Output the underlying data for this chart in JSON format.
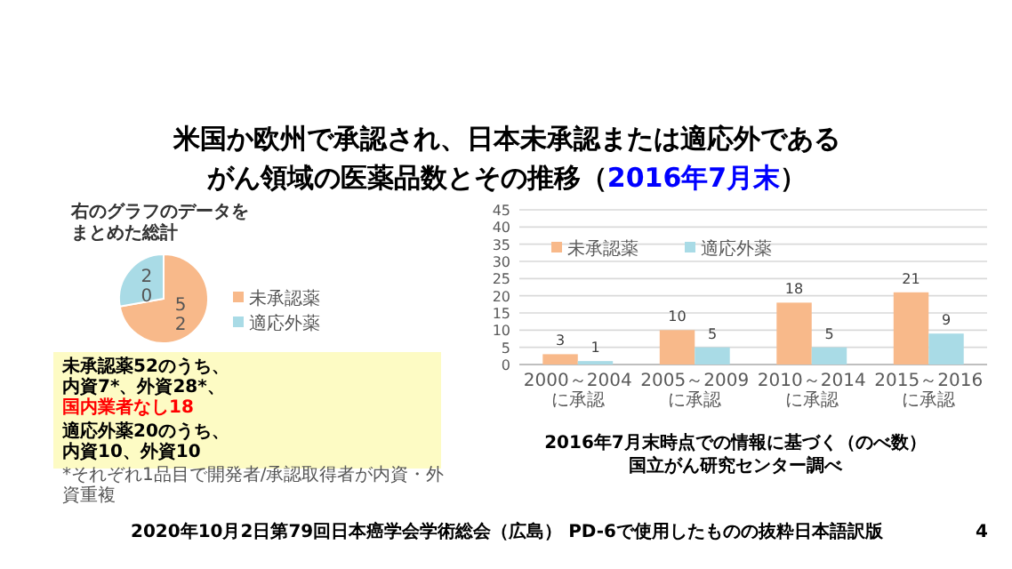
{
  "chart_data": [
    {
      "type": "other",
      "title": "米国か欧州で承認され、日本未承認または適応外であるがん領域の医薬品数とその推移（2016年7月末）",
      "annotations": [
        "2020年10月2日第79回日本癌学会学術総会（広島） PD-6で使用したものの抜粋日本語訳版",
        "4"
      ]
    },
    {
      "type": "pie",
      "title": "右のグラフのデータをまとめた総計",
      "categories": [
        "未承認薬",
        "適応外薬"
      ],
      "values": [
        52,
        20
      ],
      "colors": [
        "#f8b98a",
        "#a9dbe6"
      ],
      "data_labels": true,
      "legend": "right",
      "annotations": [
        "未承認薬52のうち、",
        "内資7*、外資28*、",
        "国内業者なし18",
        "適応外薬20のうち、",
        "内資10、外資10",
        "*それぞれ1品目で開発者/承認取得者が内資・外資重複"
      ]
    },
    {
      "type": "bar",
      "categories": [
        "2000～2004に承認",
        "2005～2009に承認",
        "2010～2014に承認",
        "2015～2016に承認"
      ],
      "series": [
        {
          "name": "未承認薬",
          "color": "#f8b98a",
          "values": [
            3,
            10,
            18,
            21
          ]
        },
        {
          "name": "適応外薬",
          "color": "#a9dbe6",
          "values": [
            1,
            5,
            5,
            9
          ]
        }
      ],
      "ylim": [
        0,
        45
      ],
      "yticks": [
        0,
        5,
        10,
        15,
        20,
        25,
        30,
        35,
        40,
        45
      ],
      "grid": "y",
      "legend": "top left",
      "data_labels": true,
      "annotations": [
        "2016年7月末時点での情報に基づく（のべ数）",
        "国立がん研究センター調べ"
      ]
    }
  ]
}
